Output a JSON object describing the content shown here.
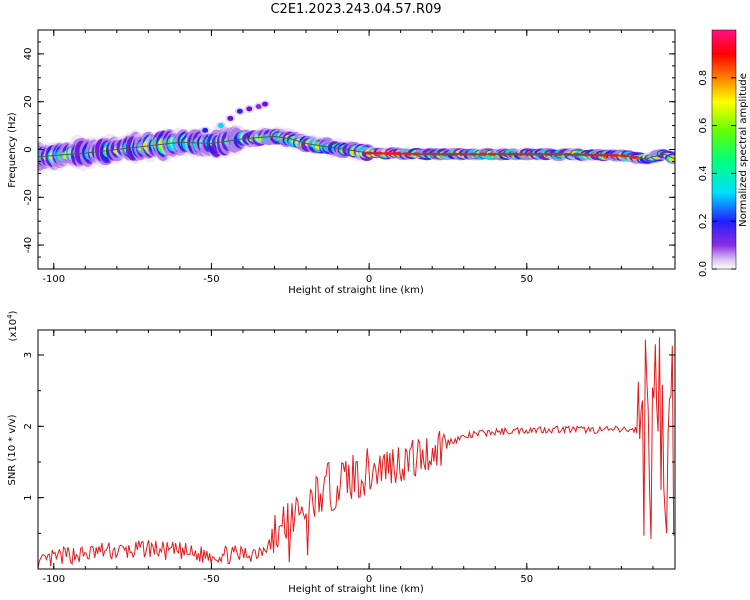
{
  "title": "C2E1.2023.243.04.57.R09",
  "colors": {
    "snr_line": "#e3191c",
    "axis": "#000000",
    "track_line": "#555555"
  },
  "chart_data": [
    {
      "type": "heatmap",
      "title": "C2E1.2023.243.04.57.R09",
      "xlabel": "Height of straight line (km)",
      "ylabel": "Frequency (Hz)",
      "xlim": [
        -105,
        97
      ],
      "ylim": [
        -50,
        50
      ],
      "x_ticks": [
        -100,
        -50,
        0,
        50
      ],
      "y_ticks": [
        -40,
        -20,
        0,
        20,
        40
      ],
      "colorbar": {
        "label": "Normalized spectral amplitude",
        "range": [
          0,
          1
        ],
        "ticks": [
          "0.0",
          "0.2",
          "0.4",
          "0.6",
          "0.8"
        ],
        "colormap": "rainbow (white-violet-blue-cyan-green-yellow-red-pink)"
      },
      "ridge": {
        "x": [
          -105,
          -90,
          -80,
          -70,
          -60,
          -50,
          -40,
          -30,
          -25,
          -20,
          -10,
          0,
          20,
          40,
          60,
          80,
          88,
          90,
          94,
          97
        ],
        "freq": [
          -3,
          -1.5,
          0,
          1.5,
          3,
          2.5,
          4.5,
          5.5,
          4.5,
          2.5,
          0.5,
          -1.5,
          -2,
          -2,
          -2,
          -2.5,
          -4,
          -3,
          -2,
          -4
        ]
      }
    },
    {
      "type": "line",
      "xlabel": "Height of straight line (km)",
      "ylabel": "SNR (10 * v/v)",
      "y_multiplier_label": "(x10",
      "y_multiplier_exp": "4",
      "xlim": [
        -105,
        97
      ],
      "ylim": [
        0,
        3.35
      ],
      "x_ticks": [
        -100,
        -50,
        0,
        50
      ],
      "y_ticks": [
        1,
        2,
        3
      ],
      "series": [
        {
          "x": [
            -105,
            -100,
            -95,
            -90,
            -85,
            -80,
            -75,
            -70,
            -65,
            -60,
            -55,
            -50,
            -45,
            -40,
            -35,
            -30,
            -28,
            -25,
            -22,
            -20,
            -15,
            -10,
            -5,
            0,
            5,
            10,
            15,
            20,
            25,
            30,
            35,
            40,
            50,
            60,
            70,
            80,
            85,
            87,
            88,
            89,
            90,
            91,
            92,
            93,
            94,
            95,
            96,
            97
          ],
          "y": [
            0.05,
            0.15,
            0.2,
            0.2,
            0.25,
            0.25,
            0.25,
            0.3,
            0.25,
            0.25,
            0.2,
            0.2,
            0.2,
            0.2,
            0.25,
            0.45,
            0.6,
            0.75,
            0.85,
            0.95,
            1.1,
            1.2,
            1.3,
            1.35,
            1.45,
            1.5,
            1.55,
            1.65,
            1.78,
            1.85,
            1.9,
            1.92,
            1.95,
            1.96,
            1.95,
            1.95,
            1.95,
            1.96,
            2.0,
            1.9,
            1.6,
            2.8,
            0.4,
            3.2,
            0.3,
            2.9,
            1.7,
            2.0
          ]
        }
      ]
    }
  ]
}
